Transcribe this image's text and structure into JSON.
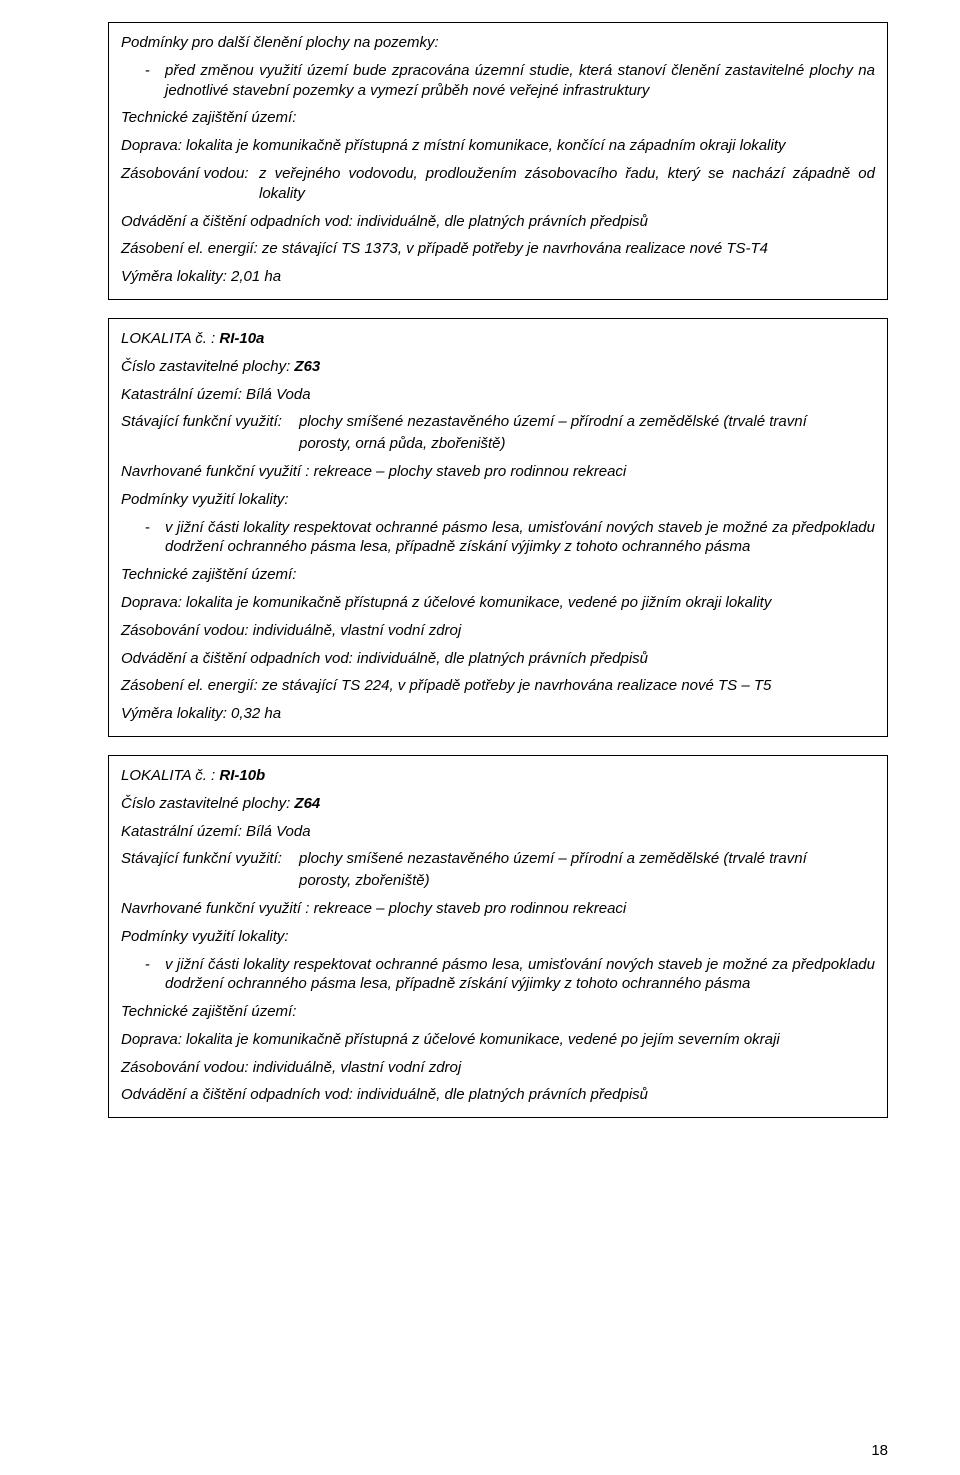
{
  "box1": {
    "heading": "Podmínky pro další členění plochy na pozemky:",
    "bullet": "před změnou využití území bude zpracována územní studie, která stanoví členění zastavitelné plochy na jednotlivé stavební pozemky a vymezí průběh nové veřejné infrastruktury",
    "tech": "Technické zajištění území:",
    "doprava": "Doprava: lokalita je komunikačně přístupná z místní komunikace, končící na západním okraji lokality",
    "zasob_lead": "Zásobování vodou:",
    "zasob_rest": "z veřejného vodovodu, prodloužením zásobovacího řadu, který se nachází západně od lokality",
    "odvad": "Odvádění a čištění odpadních vod: individuálně, dle platných právních předpisů",
    "zasobel": "Zásobení el. energií: ze stávající TS 1373, v případě potřeby je navrhována realizace nové TS-T4",
    "vymera": "Výměra lokality: 2,01 ha"
  },
  "box2": {
    "lokal_pre": "LOKALITA č. : ",
    "lokal_code": "RI-10a",
    "cislo_pre": "Číslo zastavitelné plochy: ",
    "cislo_code": "Z63",
    "katastr": "Katastrální území: Bílá Voda",
    "stav_lead": "Stávající funkční využití:",
    "stav_rest": "plochy smíšené nezastavěného území – přírodní a zemědělské (trvalé travní",
    "stav_sub": "porosty, orná půda, zbořeniště)",
    "navrh": "Navrhované funkční využití :   rekreace – plochy staveb pro rodinnou rekreaci",
    "podm": "Podmínky využití lokality:",
    "bullet": "v jižní části lokality respektovat ochranné pásmo lesa, umisťování nových staveb je možné za předpokladu dodržení ochranného pásma lesa, případně získání výjimky z tohoto ochranného pásma",
    "tech": "Technické zajištění území:",
    "doprava": "Doprava: lokalita je komunikačně přístupná z účelové komunikace, vedené po jižním okraji lokality",
    "zasob": "Zásobování vodou: individuálně, vlastní vodní zdroj",
    "odvad": "Odvádění a čištění odpadních vod: individuálně, dle platných právních předpisů",
    "zasobel": "Zásobení el. energií: ze stávající TS 224, v případě potřeby je navrhována realizace nové TS – T5",
    "vymera": "Výměra lokality: 0,32 ha"
  },
  "box3": {
    "lokal_pre": "LOKALITA č. : ",
    "lokal_code": "RI-10b",
    "cislo_pre": "Číslo zastavitelné plochy: ",
    "cislo_code": "Z64",
    "katastr": "Katastrální území: Bílá Voda",
    "stav_lead": "Stávající funkční využití:",
    "stav_rest": "plochy smíšené nezastavěného území – přírodní a zemědělské (trvalé travní",
    "stav_sub": "porosty, zbořeniště)",
    "navrh": "Navrhované funkční využití :   rekreace – plochy staveb pro rodinnou rekreaci",
    "podm": "Podmínky využití lokality:",
    "bullet": "v jižní části lokality respektovat ochranné pásmo lesa, umisťování nových staveb je možné za předpokladu dodržení ochranného pásma lesa, případně získání výjimky z tohoto ochranného pásma",
    "tech": "Technické zajištění území:",
    "doprava": "Doprava: lokalita je komunikačně přístupná z účelové komunikace, vedené po jejím severním okraji",
    "zasob": "Zásobování vodou: individuálně, vlastní vodní zdroj",
    "odvad": "Odvádění a čištění odpadních vod: individuálně, dle platných právních předpisů"
  },
  "page_number": "18"
}
